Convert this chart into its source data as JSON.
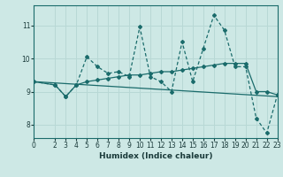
{
  "xlabel": "Humidex (Indice chaleur)",
  "background_color": "#cde8e5",
  "grid_color": "#b8d8d5",
  "line_color": "#1a6b6b",
  "xlim": [
    0,
    23
  ],
  "ylim": [
    7.6,
    11.6
  ],
  "yticks": [
    8,
    9,
    10,
    11
  ],
  "xticks": [
    0,
    2,
    3,
    4,
    5,
    6,
    7,
    8,
    9,
    10,
    11,
    12,
    13,
    14,
    15,
    16,
    17,
    18,
    19,
    20,
    21,
    22,
    23
  ],
  "series1_x": [
    0,
    2,
    3,
    4,
    5,
    6,
    7,
    8,
    9,
    10,
    11,
    12,
    13,
    14,
    15,
    16,
    17,
    18,
    19,
    20,
    21,
    22,
    23
  ],
  "series1_y": [
    9.3,
    9.2,
    8.85,
    9.2,
    10.05,
    9.75,
    9.55,
    9.6,
    9.45,
    10.95,
    9.45,
    9.3,
    9.0,
    10.5,
    9.3,
    10.3,
    11.3,
    10.85,
    9.75,
    9.75,
    8.2,
    7.75,
    8.9
  ],
  "series2_x": [
    0,
    2,
    3,
    4,
    5,
    6,
    7,
    8,
    9,
    10,
    11,
    12,
    13,
    14,
    15,
    16,
    17,
    18,
    19,
    20,
    21,
    22,
    23
  ],
  "series2_y": [
    9.3,
    9.2,
    8.85,
    9.2,
    9.3,
    9.35,
    9.4,
    9.45,
    9.5,
    9.5,
    9.55,
    9.6,
    9.6,
    9.65,
    9.7,
    9.75,
    9.8,
    9.85,
    9.85,
    9.85,
    9.0,
    9.0,
    8.9
  ],
  "series3_x": [
    0,
    23
  ],
  "series3_y": [
    9.3,
    8.85
  ]
}
